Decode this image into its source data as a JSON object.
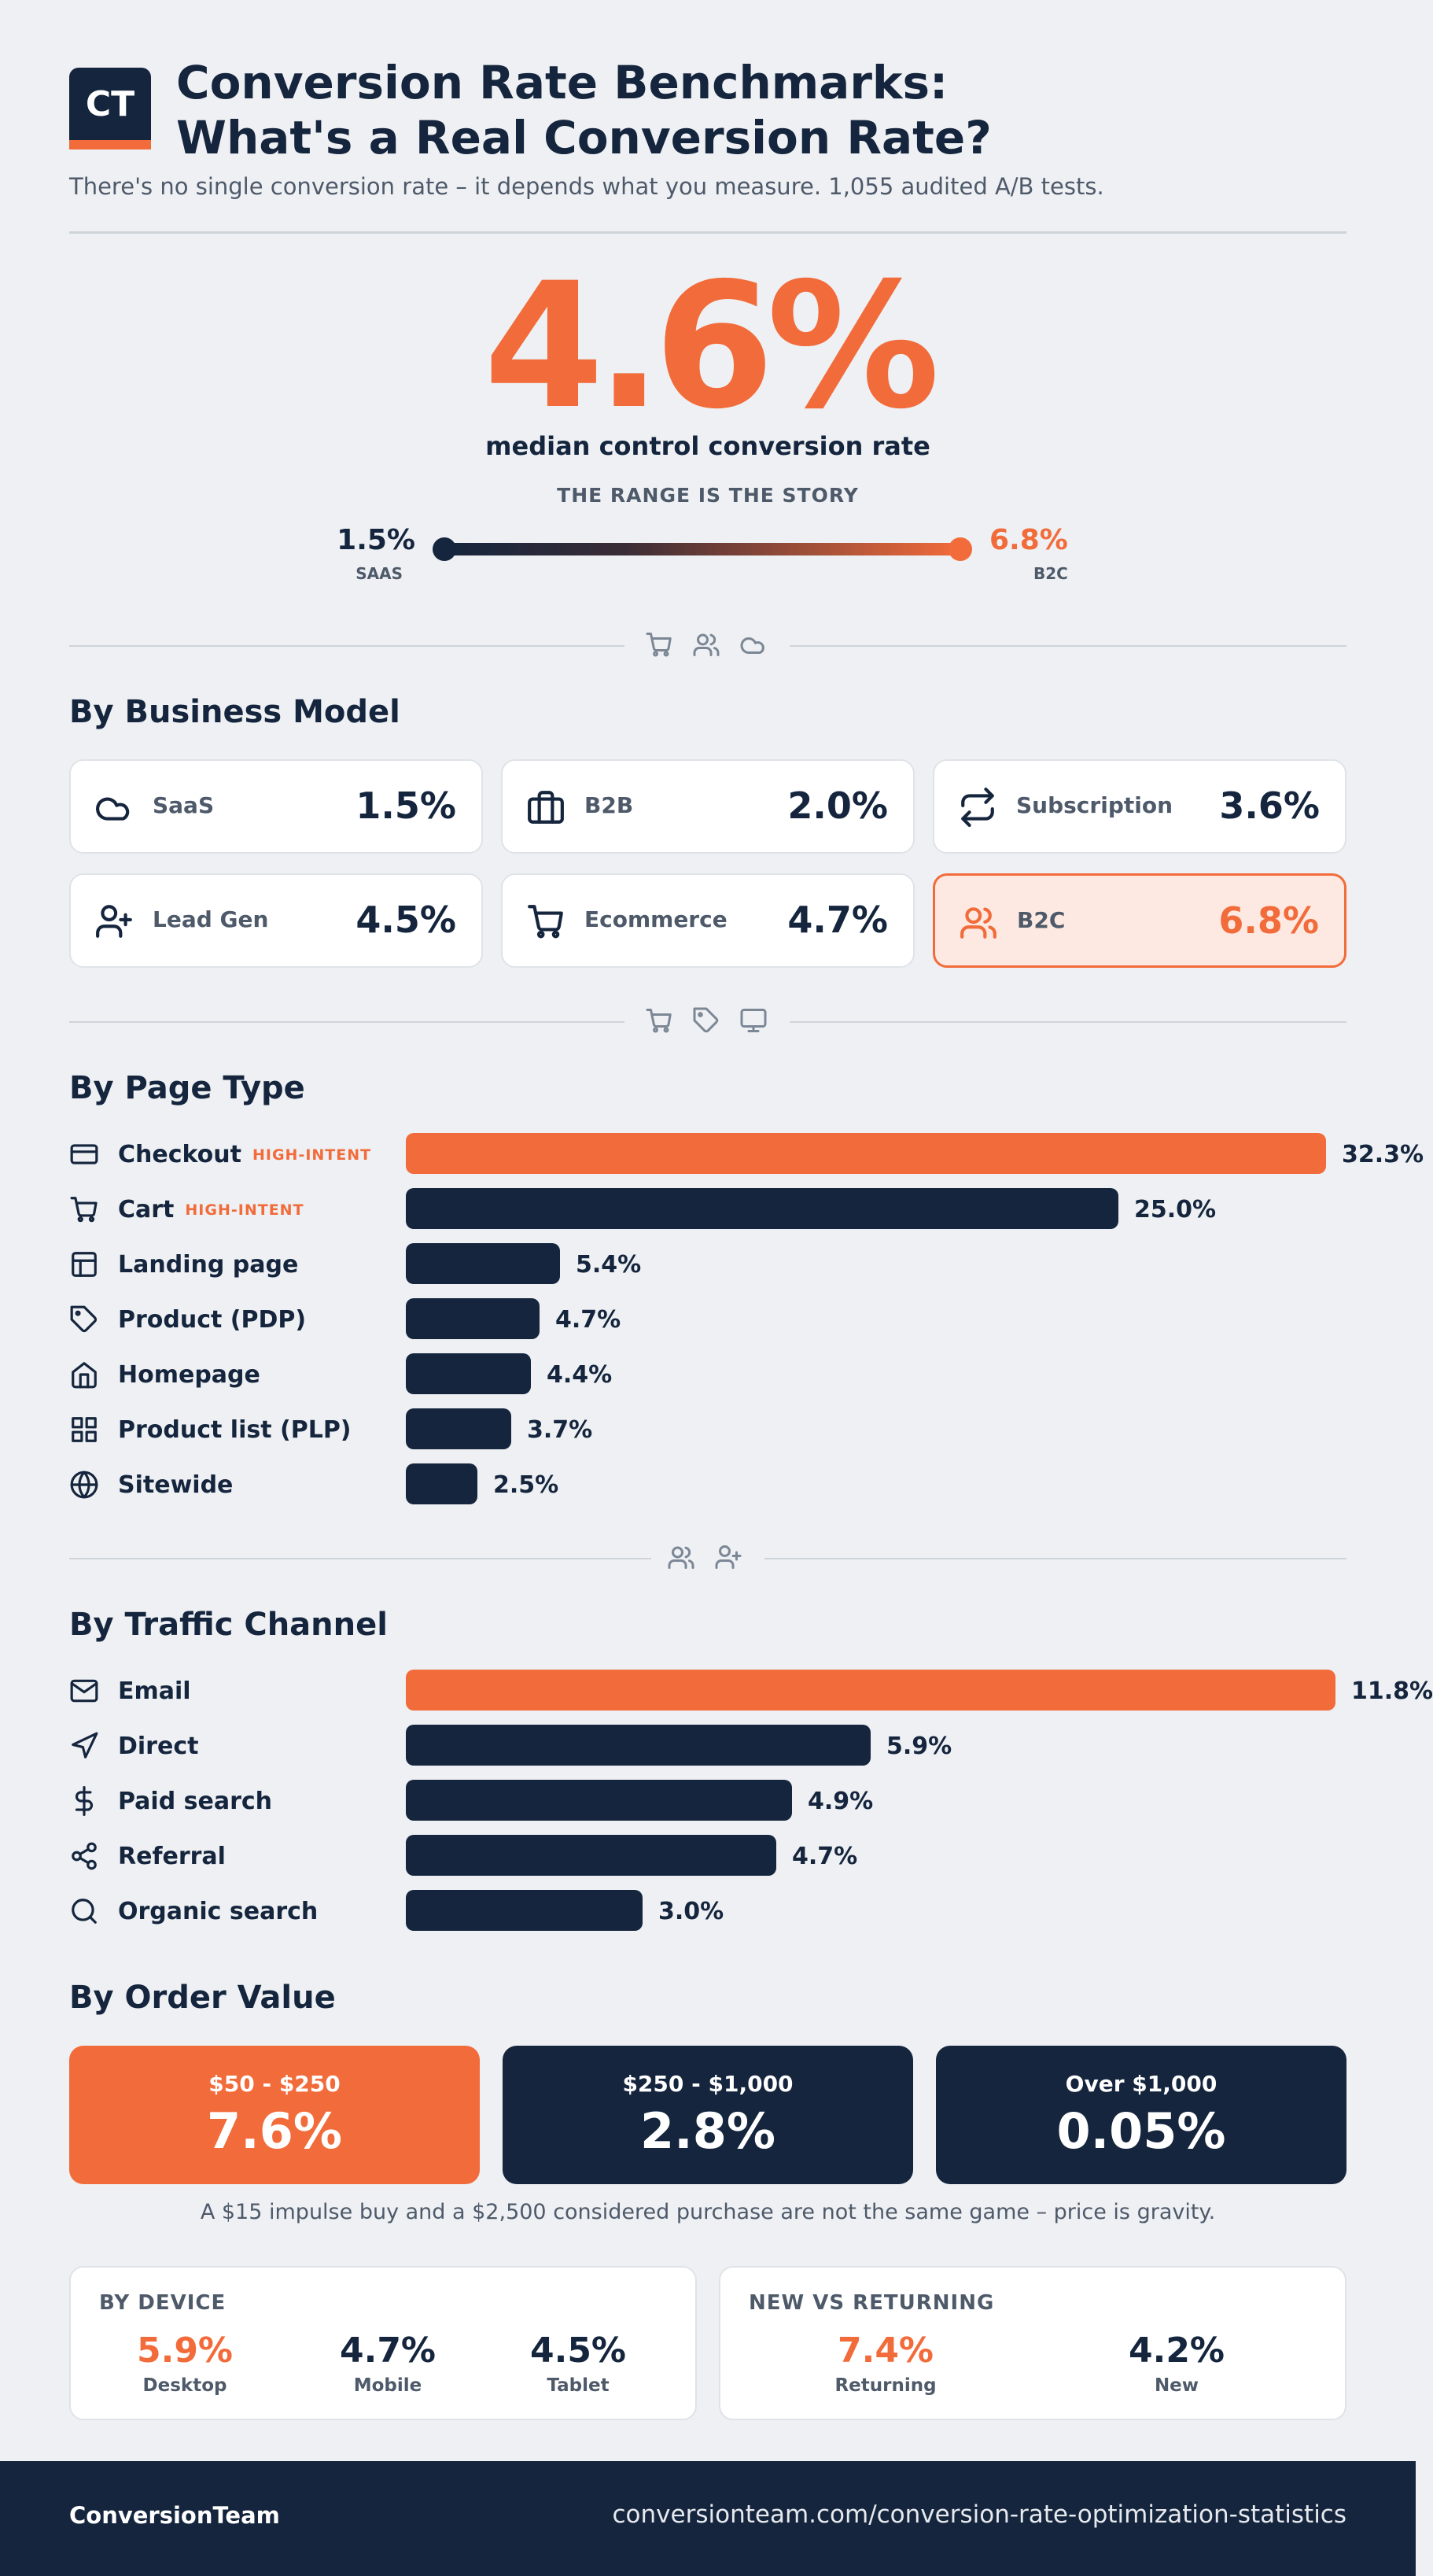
{
  "header": {
    "logo_text": "CT",
    "title_line1": "Conversion Rate Benchmarks:",
    "title_line2": "What's a Real Conversion Rate?",
    "subtitle": "There's no single conversion rate – it depends what you measure. 1,055 audited A/B tests."
  },
  "hero": {
    "value": "4.6%",
    "caption": "median control conversion rate",
    "range_title": "THE RANGE IS THE STORY",
    "low_value": "1.5%",
    "low_label": "SAAS",
    "high_value": "6.8%",
    "high_label": "B2C"
  },
  "sections": {
    "business_model": "By Business Model",
    "page_type": "By Page Type",
    "traffic_channel": "By Traffic Channel",
    "order_value": "By Order Value"
  },
  "colors": {
    "navy": "#14253d",
    "accent": "#f26b3a",
    "background": "#eef0f3"
  },
  "chart_data": [
    {
      "type": "table",
      "title": "By Business Model",
      "categories": [
        "SaaS",
        "B2B",
        "Subscription",
        "Lead Gen",
        "Ecommerce",
        "B2C"
      ],
      "values": [
        1.5,
        2.0,
        3.6,
        4.5,
        4.7,
        6.8
      ],
      "labels": [
        "1.5%",
        "2.0%",
        "3.6%",
        "4.5%",
        "4.7%",
        "6.8%"
      ],
      "icons": [
        "cloud-icon",
        "briefcase-icon",
        "repeat-icon",
        "user-plus-icon",
        "cart-icon",
        "users-icon"
      ],
      "highlight": "B2C"
    },
    {
      "type": "bar",
      "orientation": "horizontal",
      "title": "By Page Type",
      "categories": [
        "Checkout",
        "Cart",
        "Landing page",
        "Product (PDP)",
        "Homepage",
        "Product list (PLP)",
        "Sitewide"
      ],
      "values": [
        32.3,
        25.0,
        5.4,
        4.7,
        4.4,
        3.7,
        2.5
      ],
      "labels": [
        "32.3%",
        "25.0%",
        "5.4%",
        "4.7%",
        "4.4%",
        "3.7%",
        "2.5%"
      ],
      "tags": [
        "HIGH-INTENT",
        "HIGH-INTENT",
        "",
        "",
        "",
        "",
        ""
      ],
      "icons": [
        "credit-card-icon",
        "cart-icon",
        "layout-icon",
        "tag-icon",
        "home-icon",
        "grid-icon",
        "globe-icon"
      ],
      "highlight": "Checkout"
    },
    {
      "type": "bar",
      "orientation": "horizontal",
      "title": "By Traffic Channel",
      "categories": [
        "Email",
        "Direct",
        "Paid search",
        "Referral",
        "Organic search"
      ],
      "values": [
        11.8,
        5.9,
        4.9,
        4.7,
        3.0
      ],
      "labels": [
        "11.8%",
        "5.9%",
        "4.9%",
        "4.7%",
        "3.0%"
      ],
      "icons": [
        "mail-icon",
        "navigation-icon",
        "dollar-icon",
        "share-icon",
        "search-icon"
      ],
      "highlight": "Email"
    },
    {
      "type": "table",
      "title": "By Order Value",
      "categories": [
        "$50 - $250",
        "$250 - $1,000",
        "Over $1,000"
      ],
      "values": [
        7.6,
        2.8,
        0.05
      ],
      "labels": [
        "7.6%",
        "2.8%",
        "0.05%"
      ],
      "highlight": "$50 - $250"
    },
    {
      "type": "table",
      "title": "BY DEVICE",
      "categories": [
        "Desktop",
        "Mobile",
        "Tablet"
      ],
      "values": [
        5.9,
        4.7,
        4.5
      ],
      "labels": [
        "5.9%",
        "4.7%",
        "4.5%"
      ],
      "highlight": "Desktop"
    },
    {
      "type": "table",
      "title": "NEW VS RETURNING",
      "categories": [
        "Returning",
        "New"
      ],
      "values": [
        7.4,
        4.2
      ],
      "labels": [
        "7.4%",
        "4.2%"
      ],
      "highlight": "Returning"
    }
  ],
  "order_note": "A $15 impulse buy and a $2,500 considered purchase are not the same game – price is gravity.",
  "footer": {
    "brand": "ConversionTeam",
    "url": "conversionteam.com/conversion-rate-optimization-statistics"
  }
}
